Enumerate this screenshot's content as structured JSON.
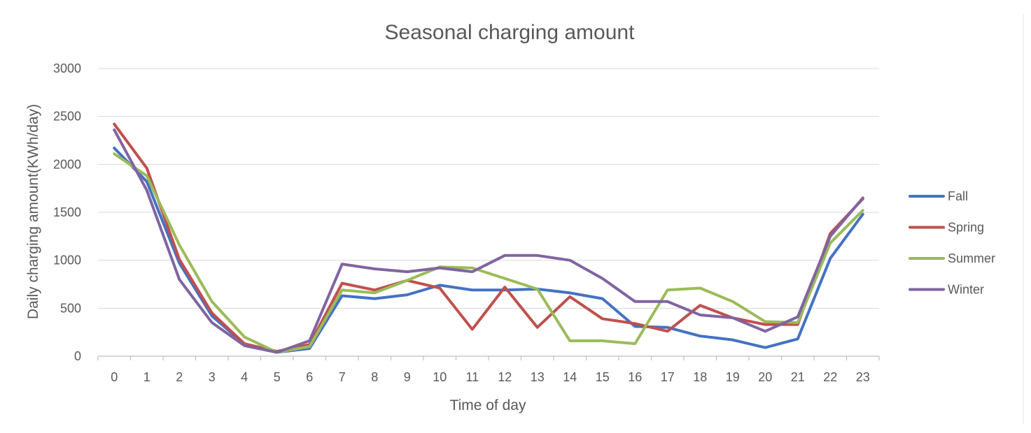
{
  "chart_data": {
    "type": "line",
    "title": "Seasonal charging amount",
    "xlabel": "Time of day",
    "ylabel": "Daily charging amount(KWh/day)",
    "ylim": [
      0,
      3000
    ],
    "yticks": [
      0,
      500,
      1000,
      1500,
      2000,
      2500,
      3000
    ],
    "grid": true,
    "legend_position": "right",
    "x": [
      0,
      1,
      2,
      3,
      4,
      5,
      6,
      7,
      8,
      9,
      10,
      11,
      12,
      13,
      14,
      15,
      16,
      17,
      18,
      19,
      20,
      21,
      22,
      23
    ],
    "series": [
      {
        "name": "Fall",
        "color": "#4472c4",
        "values": [
          2170,
          1820,
          970,
          420,
          125,
          40,
          80,
          630,
          600,
          640,
          740,
          690,
          690,
          700,
          660,
          600,
          310,
          300,
          210,
          170,
          90,
          180,
          1020,
          1480
        ]
      },
      {
        "name": "Spring",
        "color": "#c0504d",
        "values": [
          2420,
          1960,
          1010,
          450,
          130,
          50,
          120,
          760,
          690,
          790,
          710,
          280,
          720,
          300,
          620,
          390,
          340,
          260,
          530,
          400,
          330,
          330,
          1280,
          1640
        ]
      },
      {
        "name": "Summer",
        "color": "#9bbb59",
        "values": [
          2110,
          1880,
          1160,
          570,
          200,
          40,
          100,
          690,
          660,
          790,
          930,
          920,
          810,
          700,
          160,
          160,
          130,
          690,
          710,
          570,
          360,
          350,
          1180,
          1520
        ]
      },
      {
        "name": "Winter",
        "color": "#8064a2",
        "values": [
          2360,
          1730,
          800,
          350,
          110,
          40,
          160,
          960,
          910,
          880,
          920,
          880,
          1050,
          1050,
          1000,
          810,
          570,
          570,
          430,
          400,
          260,
          410,
          1250,
          1650
        ]
      }
    ]
  }
}
